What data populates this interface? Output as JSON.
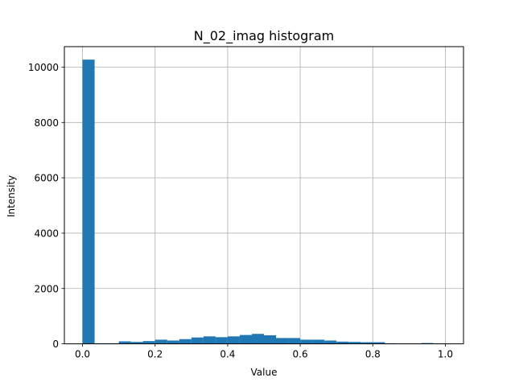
{
  "chart_data": {
    "type": "bar",
    "title": "N_02_imag histogram",
    "xlabel": "Value",
    "ylabel": "Intensity",
    "xlim": [
      -0.05,
      1.05
    ],
    "ylim": [
      0,
      10740
    ],
    "x_ticks": [
      0.0,
      0.2,
      0.4,
      0.6,
      0.8,
      1.0
    ],
    "x_tick_labels": [
      "0.0",
      "0.2",
      "0.4",
      "0.6",
      "0.8",
      "1.0"
    ],
    "y_ticks": [
      0,
      2000,
      4000,
      6000,
      8000,
      10000
    ],
    "y_tick_labels": [
      "0",
      "2000",
      "4000",
      "6000",
      "8000",
      "10000"
    ],
    "grid": true,
    "bar_color": "#1f77b4",
    "bin_edges": [
      0.0,
      0.0333,
      0.0667,
      0.1,
      0.1333,
      0.1667,
      0.2,
      0.2333,
      0.2667,
      0.3,
      0.3333,
      0.3667,
      0.4,
      0.4333,
      0.4667,
      0.5,
      0.5333,
      0.5667,
      0.6,
      0.6333,
      0.6667,
      0.7,
      0.7333,
      0.7667,
      0.8,
      0.8333,
      0.8667,
      0.9,
      0.9333,
      0.9667,
      1.0
    ],
    "values": [
      10270,
      20,
      20,
      90,
      70,
      100,
      150,
      120,
      170,
      230,
      270,
      240,
      270,
      320,
      360,
      310,
      210,
      210,
      150,
      150,
      120,
      80,
      70,
      60,
      60,
      20,
      10,
      10,
      30,
      10
    ]
  }
}
